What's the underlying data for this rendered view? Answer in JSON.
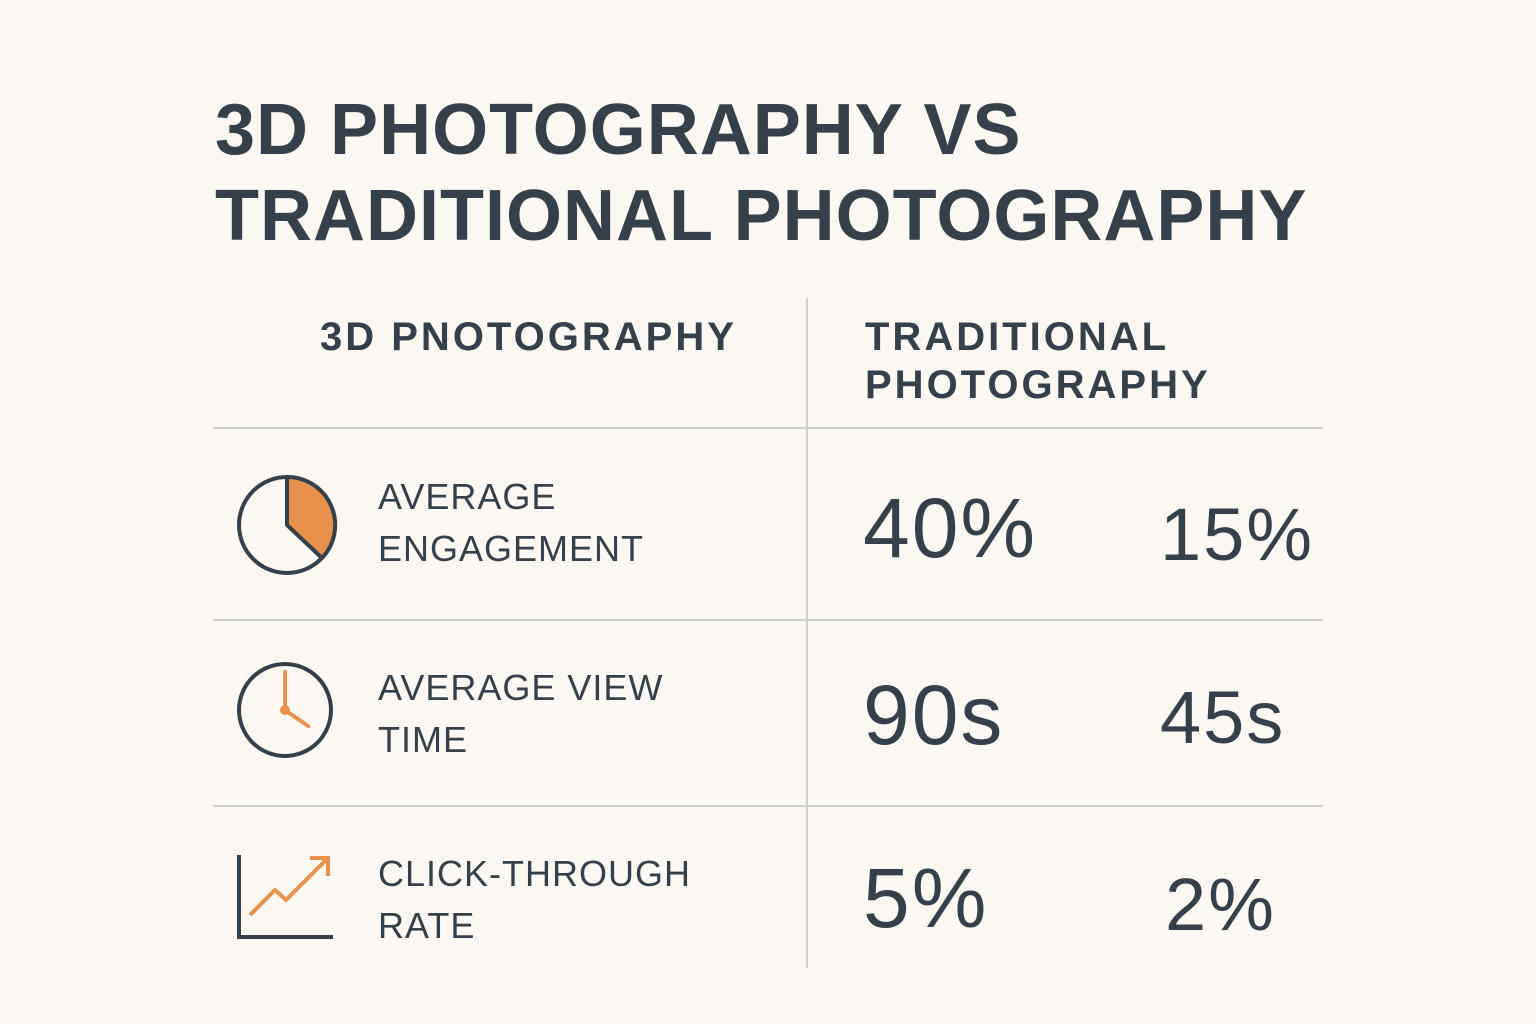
{
  "title": {
    "lines": [
      "3D PHOTOGRAPHY VS",
      "TRADITIONAL PHOTOGRAPHY"
    ]
  },
  "table": {
    "header": [
      "3D PNOTOGRAPHY",
      "TRADITIONAL PHOTOGRAPHY"
    ],
    "rows": [
      [
        "AVERAGE ENGAGEMENT",
        "40%",
        "15%"
      ],
      [
        "AVERAGE VIEW TIME",
        "90s",
        "45s"
      ],
      [
        "CLICK-THROUGH RATE",
        "5%",
        "2%"
      ]
    ]
  }
}
